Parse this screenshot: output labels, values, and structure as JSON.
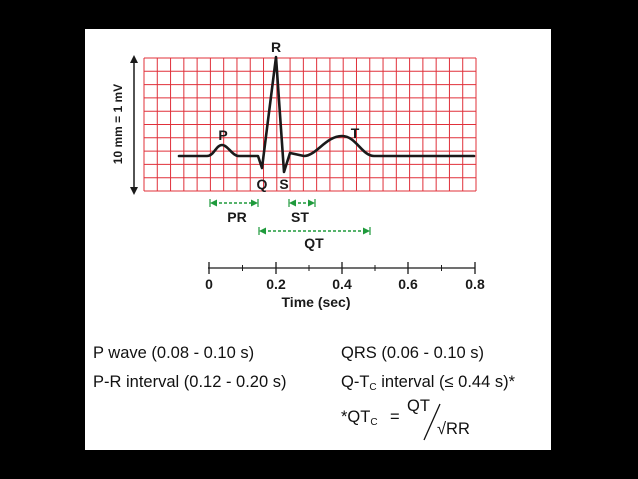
{
  "colors": {
    "background": "#000000",
    "panel": "#ffffff",
    "grid": "#e0303a",
    "trace": "#1a1a1a",
    "interval_arrows": "#1f9a3c"
  },
  "ecg": {
    "vertical_scale_label": "10 mm = 1 mV",
    "waves": {
      "p": "P",
      "q": "Q",
      "r": "R",
      "s": "S",
      "t": "T"
    },
    "intervals": {
      "pr": "PR",
      "st": "ST",
      "qt": "QT"
    }
  },
  "time_axis": {
    "label": "Time (sec)",
    "ticks": [
      "0",
      "0.2",
      "0.4",
      "0.6",
      "0.8"
    ]
  },
  "notes": {
    "p_wave": "P wave (0.08 - 0.10 s)",
    "qrs": "QRS (0.06 - 0.10 s)",
    "pr_interval": "P-R interval (0.12 - 0.20 s)",
    "qtc_prefix": "Q-T",
    "qtc_sub": "C",
    "qtc_suffix": " interval (≤ 0.44 s)*",
    "formula_lhs": "*QT",
    "formula_sub": "C",
    "formula_eq": "=",
    "formula_num": "QT",
    "formula_root": "√RR"
  }
}
